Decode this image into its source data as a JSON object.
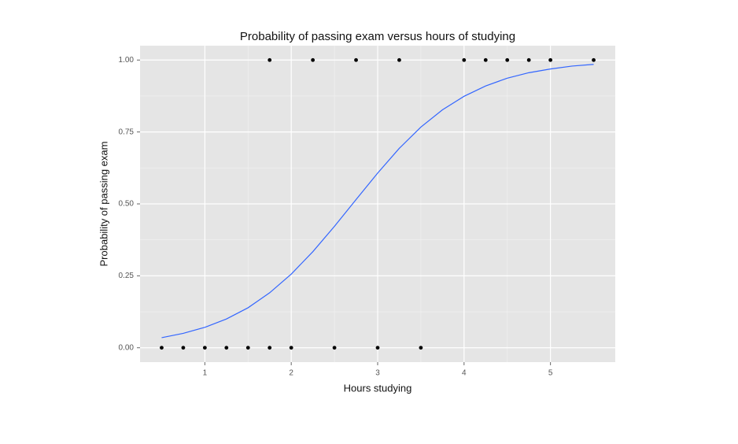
{
  "chart_data": {
    "type": "scatter",
    "title": "Probability of passing exam versus hours of studying",
    "x_label": "Hours studying",
    "y_label": "Probability of passing exam",
    "series": [
      {
        "type": "scatter",
        "color": "#000000",
        "x": [
          0.5,
          0.75,
          1.0,
          1.25,
          1.5,
          1.75,
          1.75,
          2.0,
          2.25,
          2.5,
          2.75,
          3.0,
          3.25,
          3.5,
          4.0,
          4.25,
          4.5,
          4.75,
          5.0,
          5.5
        ],
        "values": [
          0,
          0,
          0,
          0,
          0,
          0,
          1,
          0,
          1,
          0,
          1,
          0,
          1,
          0,
          1,
          1,
          1,
          1,
          1,
          1
        ]
      },
      {
        "type": "line",
        "color": "#3366ff",
        "x": [
          0.5,
          0.75,
          1.0,
          1.25,
          1.5,
          1.75,
          2.0,
          2.25,
          2.5,
          2.75,
          3.0,
          3.25,
          3.5,
          3.75,
          4.0,
          4.25,
          4.5,
          4.75,
          5.0,
          5.25,
          5.5
        ],
        "values": [
          0.035,
          0.05,
          0.071,
          0.1,
          0.139,
          0.191,
          0.256,
          0.334,
          0.422,
          0.515,
          0.607,
          0.693,
          0.767,
          0.827,
          0.874,
          0.91,
          0.937,
          0.956,
          0.969,
          0.979,
          0.985
        ]
      }
    ],
    "xlim": [
      0.25,
      5.75
    ],
    "ylim": [
      -0.05,
      1.05
    ],
    "xticks": [
      1,
      2,
      3,
      4,
      5
    ],
    "yticks": [
      {
        "value": 0,
        "label": "0.00"
      },
      {
        "value": 0.25,
        "label": "0.25"
      },
      {
        "value": 0.5,
        "label": "0.50"
      },
      {
        "value": 0.75,
        "label": "0.75"
      },
      {
        "value": 1,
        "label": "1.00"
      }
    ],
    "grid": true,
    "minor_grid": true,
    "background": "#e5e5e5"
  }
}
